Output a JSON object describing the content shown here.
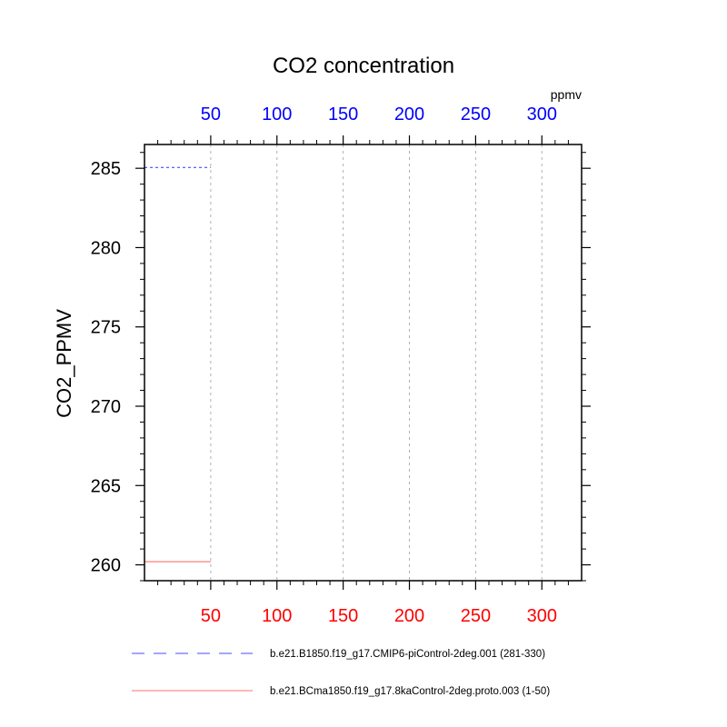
{
  "chart_data": {
    "type": "line",
    "title": "CO2 concentration",
    "ylabel": "CO2_PPMV",
    "top_axis_unit": "ppmv",
    "xlim": [
      0,
      330
    ],
    "ylim": [
      259,
      286.5
    ],
    "x_ticks": [
      50,
      100,
      150,
      200,
      250,
      300
    ],
    "y_ticks": [
      260,
      265,
      270,
      275,
      280,
      285
    ],
    "grid": "vertical-dotted",
    "top_axis_color": "#0000ff",
    "bottom_axis_color": "#ff0000",
    "legend_position": "bottom",
    "series": [
      {
        "name": "b.e21.B1850.f19_g17.CMIP6-piControl-2deg.001 (281-330)",
        "color": "#4a4aff",
        "dash": "dashed",
        "points": [
          [
            0,
            285.05
          ],
          [
            50,
            285.05
          ]
        ]
      },
      {
        "name": "b.e21.BCma1850.f19_g17.8kaControl-2deg.proto.003 (1-50)",
        "color": "#ff6f6f",
        "dash": "solid",
        "points": [
          [
            0,
            260.2
          ],
          [
            50,
            260.2
          ]
        ]
      }
    ]
  }
}
